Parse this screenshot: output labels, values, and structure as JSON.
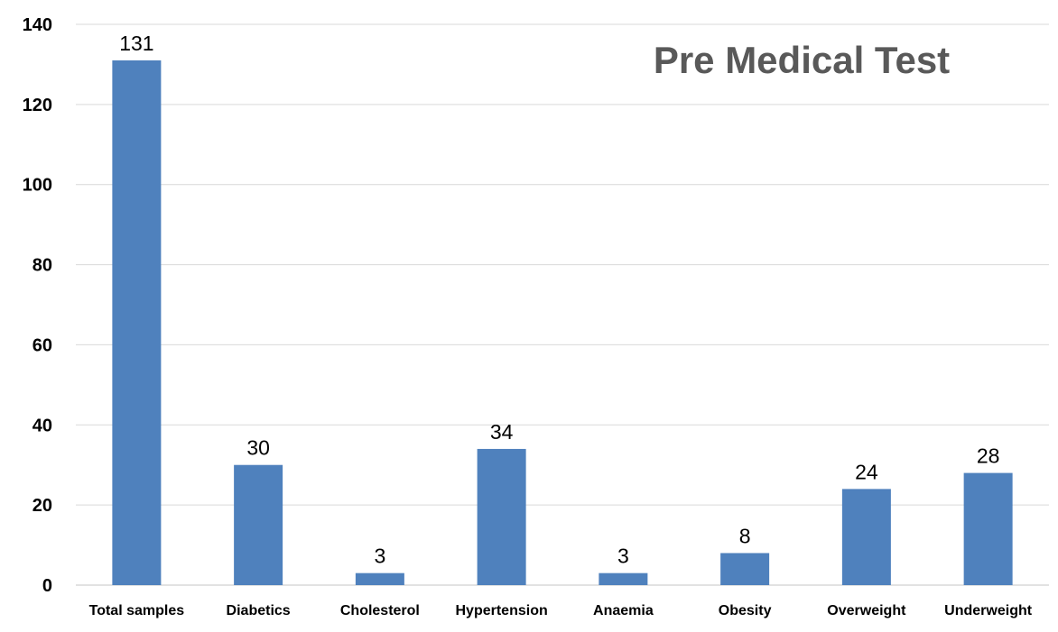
{
  "chart_data": {
    "type": "bar",
    "title": "Pre Medical Test",
    "xlabel": "",
    "ylabel": "",
    "categories": [
      "Total samples",
      "Diabetics",
      "Cholesterol",
      "Hypertension",
      "Anaemia",
      "Obesity",
      "Overweight",
      "Underweight"
    ],
    "values": [
      131,
      30,
      3,
      34,
      3,
      8,
      24,
      28
    ],
    "ylim": [
      0,
      140
    ],
    "yticks": [
      0,
      20,
      40,
      60,
      80,
      100,
      120,
      140
    ],
    "grid": true,
    "legend": "none",
    "bar_color": "#4f81bd"
  }
}
